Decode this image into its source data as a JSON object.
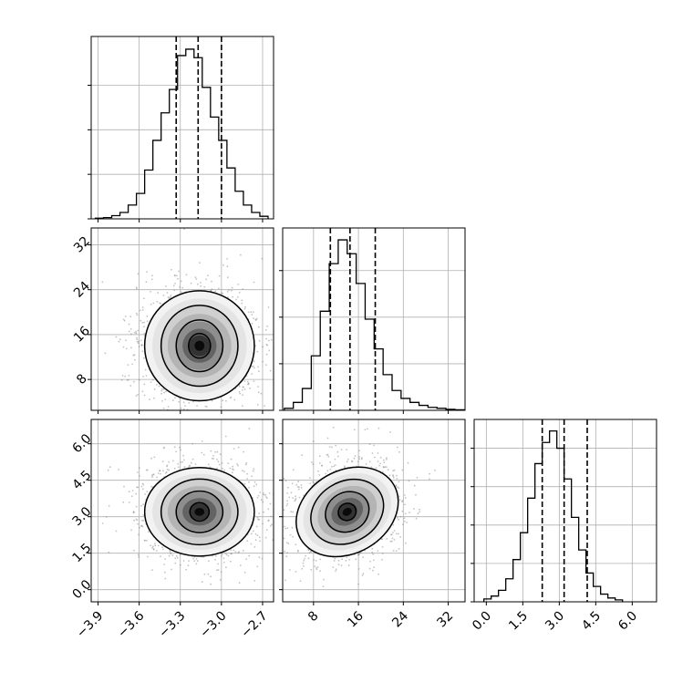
{
  "chart_data": {
    "type": "corner",
    "title": "",
    "grid": true,
    "parameters": [
      {
        "range": [
          -3.95,
          -2.62
        ],
        "ticks": [
          -3.9,
          -3.6,
          -3.3,
          -3.0,
          -2.7
        ],
        "tick_labels": [
          "−3.9",
          "−3.6",
          "−3.3",
          "−3.0",
          "−2.7"
        ],
        "quantiles": [
          -3.33,
          -3.17,
          -3.0
        ],
        "hist": {
          "bin_start": -3.92,
          "bin_width": 0.06,
          "counts": [
            0.3,
            0.6,
            1.5,
            3,
            6.5,
            12,
            23,
            37,
            50,
            61,
            77,
            80,
            76,
            62,
            48,
            37,
            24,
            13,
            6.5,
            3,
            1.2
          ],
          "ylim": [
            0,
            86
          ]
        }
      },
      {
        "range": [
          2.5,
          35
        ],
        "ticks": [
          8,
          16,
          24,
          32
        ],
        "tick_labels": [
          "8",
          "16",
          "24",
          "32"
        ],
        "quantiles": [
          11,
          14.5,
          19
        ],
        "hist": {
          "bin_start": 2.8,
          "bin_width": 1.6,
          "counts": [
            2,
            8,
            22,
            55,
            100,
            148,
            172,
            158,
            128,
            92,
            62,
            36,
            20,
            12,
            8,
            5,
            3,
            2,
            1,
            0.5
          ],
          "ylim": [
            0,
            184
          ]
        }
      },
      {
        "range": [
          -0.5,
          7.0
        ],
        "ticks": [
          0.0,
          1.5,
          3.0,
          4.5,
          6.0
        ],
        "tick_labels": [
          "0.0",
          "1.5",
          "3.0",
          "4.5",
          "6.0"
        ],
        "quantiles": [
          2.3,
          3.2,
          4.15
        ],
        "hist": {
          "bin_start": -0.1,
          "bin_width": 0.3,
          "counts": [
            1.5,
            3,
            6,
            12,
            22,
            36,
            54,
            72,
            83,
            89,
            80,
            64,
            44,
            27,
            15,
            8,
            4,
            2,
            1
          ],
          "ylim": [
            0,
            95
          ]
        }
      }
    ],
    "hist_ticks": {
      "p0": [
        0,
        21,
        42,
        63
      ],
      "p1": [
        0,
        47,
        94,
        141
      ],
      "p2": [
        0,
        20,
        40,
        60,
        80
      ]
    },
    "joint": [
      {
        "x": 0,
        "y": 1,
        "mean": [
          -3.16,
          14.0
        ],
        "levels": [
          {
            "density": "1-sigma",
            "rx": 0.08,
            "ry": 2.2
          },
          {
            "density": "2-sigma",
            "rx": 0.17,
            "ry": 4.6
          },
          {
            "density": "3-sigma",
            "rx": 0.28,
            "ry": 7.2
          },
          {
            "density": "4-sigma",
            "rx": 0.4,
            "ry": 9.8
          }
        ]
      },
      {
        "x": 0,
        "y": 2,
        "mean": [
          -3.16,
          3.2
        ],
        "levels": [
          {
            "density": "1-sigma",
            "rx": 0.07,
            "ry": 0.38
          },
          {
            "density": "2-sigma",
            "rx": 0.17,
            "ry": 0.85
          },
          {
            "density": "3-sigma",
            "rx": 0.28,
            "ry": 1.35
          },
          {
            "density": "4-sigma",
            "rx": 0.4,
            "ry": 1.82
          }
        ]
      },
      {
        "x": 1,
        "y": 2,
        "mean": [
          14.0,
          3.2
        ],
        "levels": [
          {
            "density": "1-sigma",
            "rx": 1.6,
            "ry": 0.35
          },
          {
            "density": "2-sigma",
            "rx": 4.0,
            "ry": 0.8
          },
          {
            "density": "3-sigma",
            "rx": 6.8,
            "ry": 1.25
          },
          {
            "density": "4-sigma",
            "rx": 9.6,
            "ry": 1.7
          }
        ],
        "rotate_deg": -30
      }
    ]
  }
}
